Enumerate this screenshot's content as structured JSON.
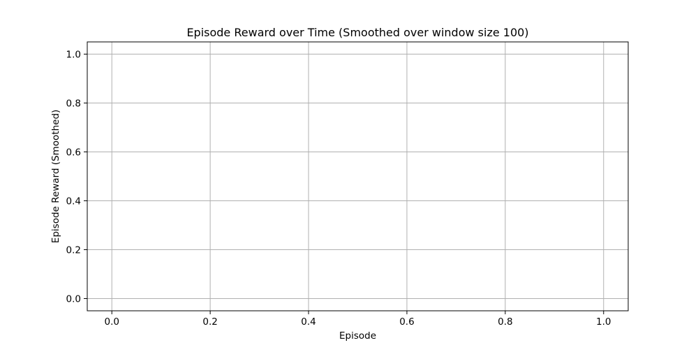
{
  "chart_data": {
    "type": "line",
    "title": "Episode Reward over Time (Smoothed over window size 100)",
    "xlabel": "Episode",
    "ylabel": "Episode Reward (Smoothed)",
    "x": [],
    "series": [
      {
        "values": []
      }
    ],
    "xlim": [
      -0.05,
      1.05
    ],
    "ylim": [
      -0.05,
      1.05
    ],
    "xticks": [
      0.0,
      0.2,
      0.4,
      0.6,
      0.8,
      1.0
    ],
    "yticks": [
      0.0,
      0.2,
      0.4,
      0.6,
      0.8,
      1.0
    ],
    "xtick_labels": [
      "0.0",
      "0.2",
      "0.4",
      "0.6",
      "0.8",
      "1.0"
    ],
    "ytick_labels": [
      "0.0",
      "0.2",
      "0.4",
      "0.6",
      "0.8",
      "1.0"
    ],
    "grid": true,
    "colors": {
      "grid": "#b0b0b0",
      "axes": "#000000",
      "background": "#ffffff"
    }
  }
}
